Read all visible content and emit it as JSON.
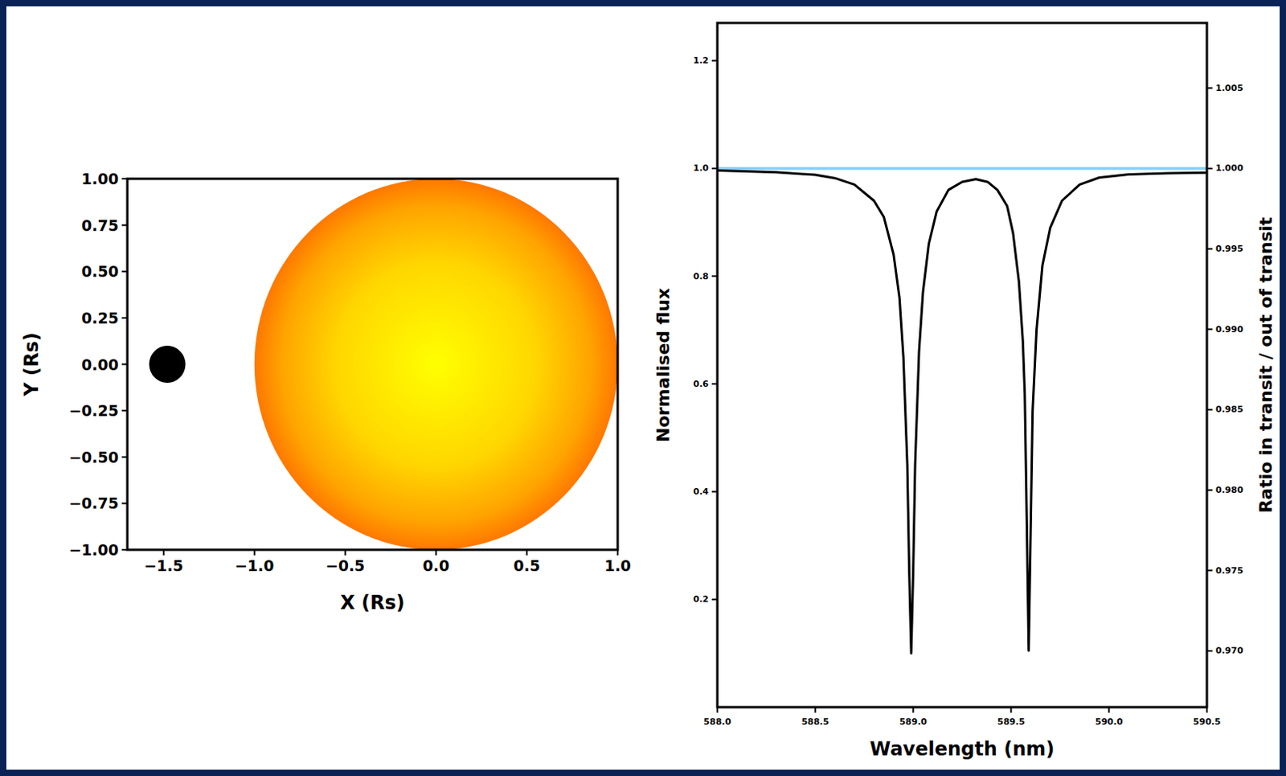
{
  "chart_data": [
    {
      "type": "transit",
      "xlabel": "X (Rs)",
      "ylabel": "Y (Rs)",
      "xlim": [
        -1.7,
        1.0
      ],
      "ylim": [
        -1.0,
        1.0
      ],
      "xticks": [
        {
          "value": -1.5,
          "label": "−1.5"
        },
        {
          "value": -1.0,
          "label": "−1.0"
        },
        {
          "value": -0.5,
          "label": "−0.5"
        },
        {
          "value": 0,
          "label": "0.0"
        },
        0.5,
        {
          "value": 1.0,
          "label": "1.0"
        }
      ],
      "yticks": [
        {
          "value": -1.0,
          "label": "−1.00"
        },
        {
          "value": -0.75,
          "label": "−0.75"
        },
        {
          "value": -0.5,
          "label": "−0.50"
        },
        {
          "value": -0.25,
          "label": "−0.25"
        },
        {
          "value": 0,
          "label": "0.00"
        },
        0.25,
        {
          "value": 0.5,
          "label": "0.50"
        },
        0.75,
        {
          "value": 1.0,
          "label": "1.00"
        }
      ],
      "star": {
        "x": 0,
        "y": 0,
        "radius": 1.0
      },
      "planet": {
        "x": -1.48,
        "y": 0,
        "radius": 0.1
      }
    },
    {
      "type": "line",
      "xlabel": "Wavelength (nm)",
      "ylabel": "Normalised flux",
      "y2label": "Ratio in transit / out of transit",
      "xlim": [
        588.0,
        590.5
      ],
      "ylim": [
        0,
        1.27
      ],
      "y2lim": [
        0.9665,
        1.00905
      ],
      "xticks": [
        {
          "value": 588,
          "label": "588.0"
        },
        588.5,
        {
          "value": 589,
          "label": "589.0"
        },
        589.5,
        {
          "value": 590,
          "label": "590.0"
        },
        590.5
      ],
      "yticks": [
        0.2,
        0.4,
        0.6,
        0.8,
        {
          "value": 1.0,
          "label": "1.0"
        },
        1.2
      ],
      "y2ticks": [
        {
          "value": 0.97,
          "label": "0.970"
        },
        0.975,
        {
          "value": 0.98,
          "label": "0.980"
        },
        0.985,
        {
          "value": 0.99,
          "label": "0.990"
        },
        0.995,
        {
          "value": 1.0,
          "label": "1.000"
        },
        1.005
      ],
      "x": [
        588.0,
        588.3,
        588.5,
        588.6,
        588.7,
        588.8,
        588.85,
        588.9,
        588.93,
        588.95,
        588.97,
        588.98,
        588.99,
        589.0,
        589.01,
        589.03,
        589.05,
        589.08,
        589.12,
        589.18,
        589.25,
        589.32,
        589.38,
        589.43,
        589.48,
        589.51,
        589.54,
        589.56,
        589.57,
        589.58,
        589.59,
        589.6,
        589.61,
        589.63,
        589.66,
        589.7,
        589.76,
        589.85,
        589.95,
        590.1,
        590.3,
        590.5
      ],
      "series": [
        {
          "color": "#000000",
          "values": [
            0.996,
            0.993,
            0.988,
            0.982,
            0.97,
            0.94,
            0.91,
            0.84,
            0.76,
            0.65,
            0.45,
            0.25,
            0.1,
            0.25,
            0.45,
            0.66,
            0.77,
            0.86,
            0.92,
            0.96,
            0.975,
            0.98,
            0.975,
            0.96,
            0.93,
            0.88,
            0.79,
            0.68,
            0.58,
            0.35,
            0.105,
            0.33,
            0.55,
            0.7,
            0.82,
            0.89,
            0.94,
            0.97,
            0.983,
            0.989,
            0.991,
            0.992
          ]
        },
        {
          "color": "#87cefa",
          "axis": "y2",
          "values": [
            1.0,
            1.0,
            1.0,
            1.0,
            1.0,
            1.0,
            1.0,
            1.0,
            1.0,
            1.0,
            1.0,
            1.0,
            1.0,
            1.0,
            1.0,
            1.0,
            1.0,
            1.0,
            1.0,
            1.0,
            1.0,
            1.0,
            1.0,
            1.0,
            1.0,
            1.0,
            1.0,
            1.0,
            1.0,
            1.0,
            1.0,
            1.0,
            1.0,
            1.0,
            1.0,
            1.0,
            1.0,
            1.0,
            1.0,
            1.0,
            1.0,
            1.0
          ]
        }
      ]
    }
  ]
}
